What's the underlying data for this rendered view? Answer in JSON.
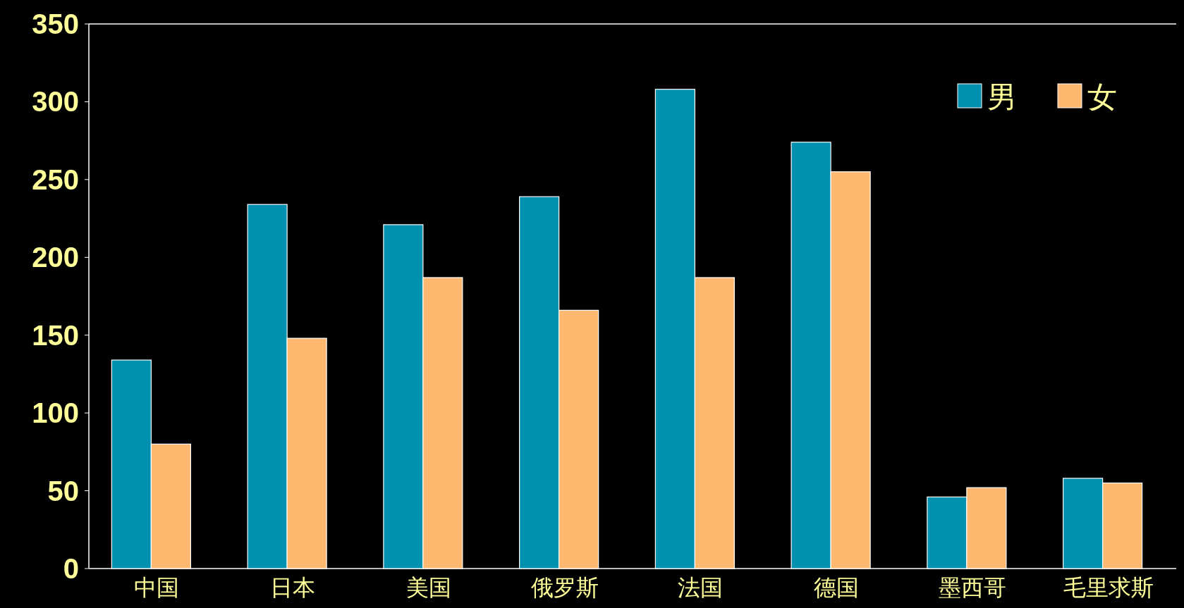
{
  "chart_data": {
    "type": "bar",
    "categories": [
      "中国",
      "日本",
      "美国",
      "俄罗斯",
      "法国",
      "德国",
      "墨西哥",
      "毛里求斯"
    ],
    "series": [
      {
        "name": "男",
        "color": "#0090b0",
        "values": [
          134,
          234,
          221,
          239,
          308,
          274,
          46,
          58
        ]
      },
      {
        "name": "女",
        "color": "#ffb870",
        "values": [
          80,
          148,
          187,
          166,
          187,
          255,
          52,
          55
        ]
      }
    ],
    "ylim": [
      0,
      350
    ],
    "yticks": [
      0,
      50,
      100,
      150,
      200,
      250,
      300,
      350
    ],
    "grid": false,
    "legend": "top right"
  }
}
